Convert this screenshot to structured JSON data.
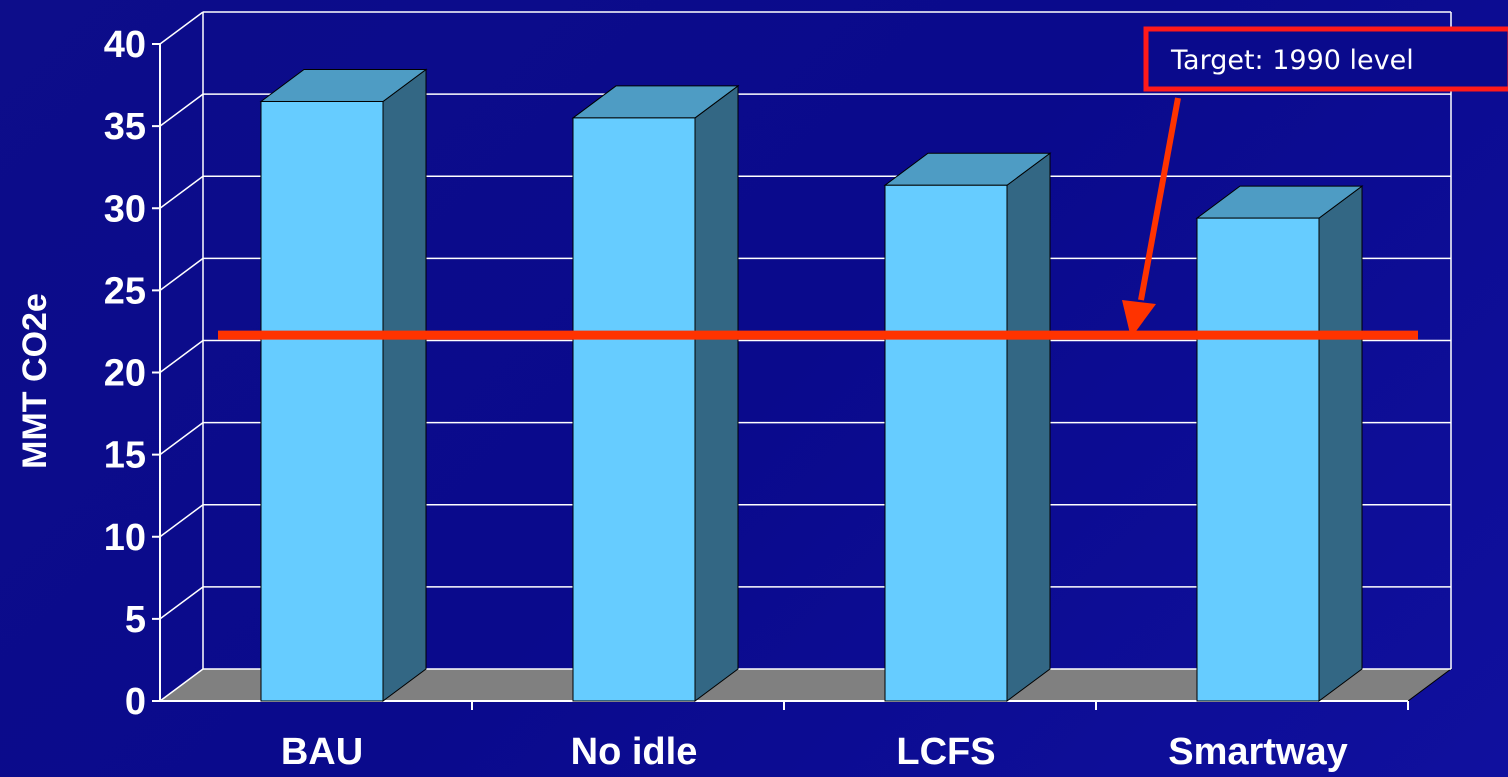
{
  "chart_data": {
    "type": "bar",
    "categories": [
      "BAU",
      "No idle",
      "LCFS",
      "Smartway"
    ],
    "values": [
      36.5,
      35.5,
      31.4,
      29.4
    ],
    "ylabel": "MMT CO2e",
    "xlabel": "",
    "ylim": [
      0,
      40
    ],
    "yticks": [
      0,
      5,
      10,
      15,
      20,
      25,
      30,
      35,
      40
    ],
    "grid": true,
    "style": "3d",
    "target_line": {
      "value": 21,
      "label": "Target: 1990 level"
    },
    "colors": {
      "bar_front": "#66ccff",
      "bar_top": "#4e9cc4",
      "bar_side": "#336784",
      "floor": "#808080",
      "gridline": "#ffffff",
      "target": "#ff3300",
      "background": "#0a0a8c"
    }
  }
}
